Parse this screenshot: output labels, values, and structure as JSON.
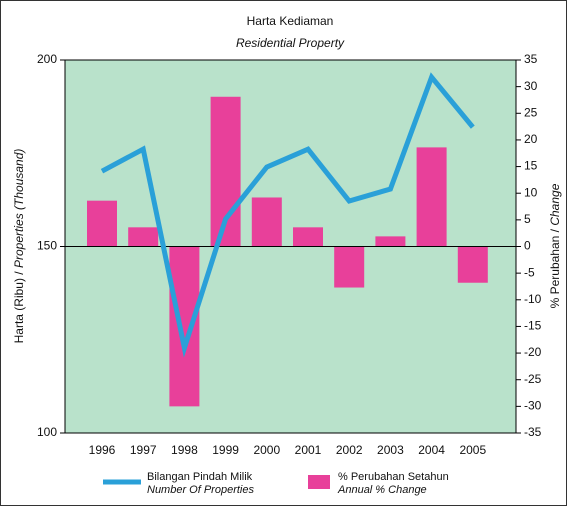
{
  "chart_data": {
    "type": "bar-line",
    "title": "Harta Kediaman",
    "subtitle": "Residential Property",
    "ylabel": [
      "Harta (Ribu) /",
      "Properties (Thousand)"
    ],
    "y2label": [
      "% Perubahan /",
      "Change"
    ],
    "categories": [
      "1996",
      "1997",
      "1998",
      "1999",
      "2000",
      "2001",
      "2002",
      "2003",
      "2004",
      "2005"
    ],
    "series": [
      {
        "name": "Bilangan Pindah Milik",
        "name_en": "Number Of Properties",
        "type": "line",
        "color": "#2aa0d8",
        "values": [
          170.2,
          176.1,
          122.8,
          157.4,
          171.3,
          176.1,
          162.2,
          165.4,
          195.4,
          182.0
        ]
      },
      {
        "name": "% Perubahan Setahun",
        "name_en": "Annual % Change",
        "type": "bar",
        "axis": "y2",
        "color": "#e8409a",
        "values": [
          8.6,
          3.6,
          -30,
          28.1,
          9.2,
          3.6,
          -7.7,
          1.9,
          18.6,
          -6.8
        ]
      }
    ],
    "ylim": [
      100,
      200
    ],
    "yticks": [
      100,
      150,
      200
    ],
    "y2lim": [
      -35,
      35
    ],
    "y2ticks": [
      -35,
      -30,
      -25,
      -20,
      -15,
      -10,
      -5,
      0,
      5,
      10,
      15,
      20,
      25,
      30,
      35
    ],
    "background": "#b9e2cb"
  }
}
